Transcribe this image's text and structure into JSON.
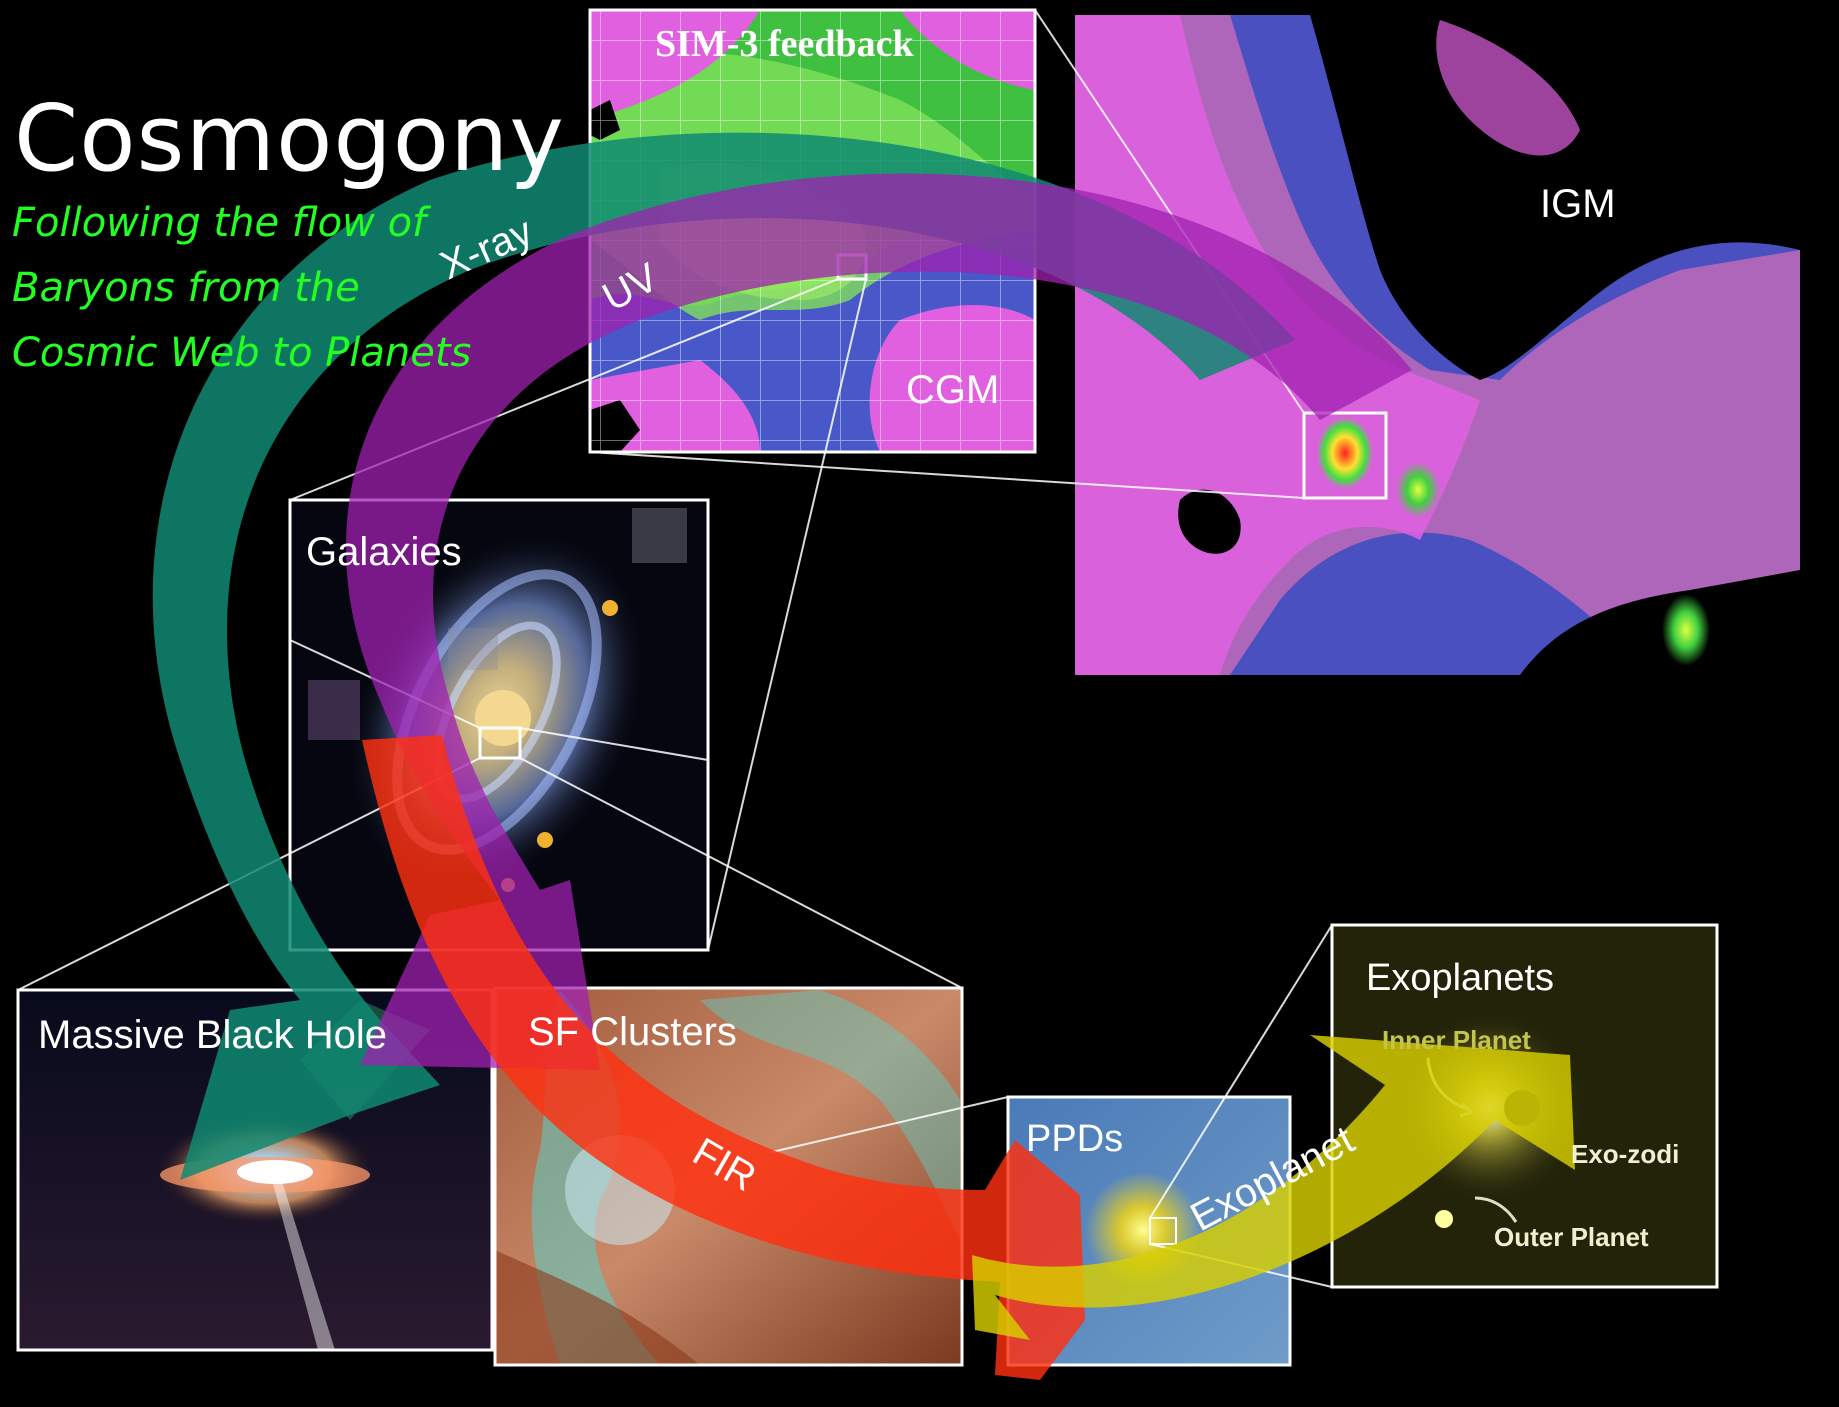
{
  "title": "Cosmogony",
  "subtitle_lines": [
    "Following the flow of",
    "Baryons from the",
    "Cosmic Web to Planets"
  ],
  "panels": {
    "sim": "SIM-3  feedback",
    "cgm": "CGM",
    "igm": "IGM",
    "galaxies": "Galaxies",
    "black_hole": "Massive Black Hole",
    "clusters": "SF Clusters",
    "ppds": "PPDs",
    "exoplanets": "Exoplanets",
    "inner_planet": "Inner Planet",
    "exo_zodi": "Exo-zodi",
    "outer_planet": "Outer Planet"
  },
  "arrows": {
    "xray": "X-ray",
    "uv": "UV",
    "fir": "FIR",
    "exoplanet": "Exoplanet"
  },
  "colors": {
    "title": "#ffffff",
    "subtitle": "#22ff22",
    "xray_arrow": "#0f8a72",
    "uv_arrow": "#a020b0",
    "fir_arrow": "#ff3010",
    "exoplanet_arrow": "#d8d000",
    "frame": "#ffffff"
  }
}
